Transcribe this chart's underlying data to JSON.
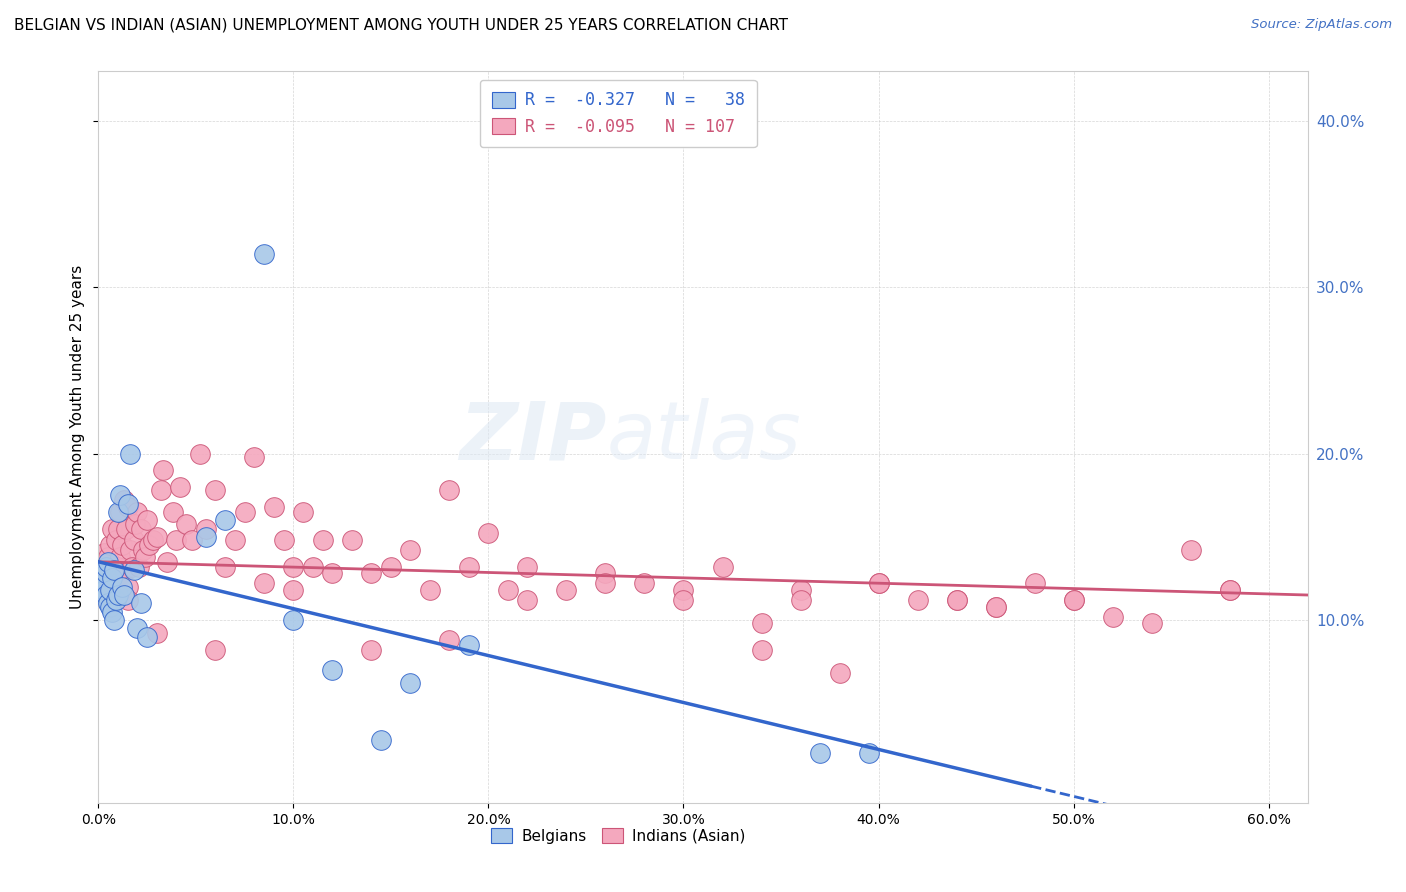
{
  "title": "BELGIAN VS INDIAN (ASIAN) UNEMPLOYMENT AMONG YOUTH UNDER 25 YEARS CORRELATION CHART",
  "source": "Source: ZipAtlas.com",
  "ylabel": "Unemployment Among Youth under 25 years",
  "belgian_color": "#a8c8e8",
  "indian_color": "#f4a8be",
  "belgian_line_color": "#3366cc",
  "indian_line_color": "#cc5577",
  "legend_label_1": "R =  -0.327   N =   38",
  "legend_label_2": "R =  -0.095   N = 107",
  "belgians_label": "Belgians",
  "indians_label": "Indians (Asian)",
  "watermark_1": "ZIP",
  "watermark_2": "atlas",
  "xlim": [
    0.0,
    0.62
  ],
  "ylim": [
    -0.01,
    0.43
  ],
  "right_ytick_vals": [
    0.1,
    0.2,
    0.3,
    0.4
  ],
  "right_ytick_labels": [
    "10.0%",
    "20.0%",
    "30.0%",
    "40.0%"
  ],
  "xtick_vals": [
    0.0,
    0.1,
    0.2,
    0.3,
    0.4,
    0.5,
    0.6
  ],
  "xtick_labels": [
    "0.0%",
    "10.0%",
    "20.0%",
    "30.0%",
    "40.0%",
    "50.0%",
    "60.0%"
  ],
  "belgians_x": [
    0.001,
    0.002,
    0.002,
    0.003,
    0.003,
    0.004,
    0.004,
    0.004,
    0.005,
    0.005,
    0.006,
    0.006,
    0.007,
    0.007,
    0.008,
    0.008,
    0.009,
    0.01,
    0.01,
    0.011,
    0.012,
    0.013,
    0.015,
    0.016,
    0.018,
    0.02,
    0.022,
    0.025,
    0.055,
    0.065,
    0.085,
    0.1,
    0.12,
    0.145,
    0.16,
    0.19,
    0.37,
    0.395
  ],
  "belgians_y": [
    0.13,
    0.12,
    0.125,
    0.118,
    0.122,
    0.115,
    0.128,
    0.132,
    0.11,
    0.135,
    0.108,
    0.118,
    0.105,
    0.125,
    0.1,
    0.13,
    0.112,
    0.115,
    0.165,
    0.175,
    0.12,
    0.115,
    0.17,
    0.2,
    0.13,
    0.095,
    0.11,
    0.09,
    0.15,
    0.16,
    0.32,
    0.1,
    0.07,
    0.028,
    0.062,
    0.085,
    0.02,
    0.02
  ],
  "indians_x": [
    0.001,
    0.002,
    0.002,
    0.003,
    0.003,
    0.004,
    0.004,
    0.005,
    0.005,
    0.006,
    0.006,
    0.007,
    0.007,
    0.008,
    0.008,
    0.009,
    0.009,
    0.01,
    0.01,
    0.011,
    0.011,
    0.012,
    0.012,
    0.013,
    0.014,
    0.015,
    0.015,
    0.016,
    0.017,
    0.018,
    0.019,
    0.02,
    0.021,
    0.022,
    0.023,
    0.024,
    0.025,
    0.026,
    0.028,
    0.03,
    0.032,
    0.033,
    0.035,
    0.038,
    0.04,
    0.042,
    0.045,
    0.048,
    0.052,
    0.055,
    0.06,
    0.065,
    0.07,
    0.075,
    0.08,
    0.085,
    0.09,
    0.095,
    0.1,
    0.105,
    0.11,
    0.115,
    0.12,
    0.13,
    0.14,
    0.15,
    0.16,
    0.17,
    0.18,
    0.19,
    0.2,
    0.21,
    0.22,
    0.24,
    0.26,
    0.28,
    0.3,
    0.32,
    0.34,
    0.36,
    0.38,
    0.4,
    0.42,
    0.44,
    0.46,
    0.48,
    0.5,
    0.52,
    0.54,
    0.56,
    0.58,
    0.44,
    0.4,
    0.36,
    0.34,
    0.3,
    0.26,
    0.22,
    0.18,
    0.14,
    0.1,
    0.06,
    0.03,
    0.015,
    0.58,
    0.5,
    0.46
  ],
  "indians_y": [
    0.128,
    0.132,
    0.12,
    0.14,
    0.125,
    0.118,
    0.13,
    0.122,
    0.138,
    0.115,
    0.145,
    0.128,
    0.155,
    0.13,
    0.12,
    0.148,
    0.125,
    0.132,
    0.155,
    0.138,
    0.165,
    0.128,
    0.145,
    0.172,
    0.155,
    0.12,
    0.168,
    0.142,
    0.132,
    0.148,
    0.158,
    0.165,
    0.132,
    0.155,
    0.142,
    0.138,
    0.16,
    0.145,
    0.148,
    0.15,
    0.178,
    0.19,
    0.135,
    0.165,
    0.148,
    0.18,
    0.158,
    0.148,
    0.2,
    0.155,
    0.178,
    0.132,
    0.148,
    0.165,
    0.198,
    0.122,
    0.168,
    0.148,
    0.132,
    0.165,
    0.132,
    0.148,
    0.128,
    0.148,
    0.128,
    0.132,
    0.142,
    0.118,
    0.178,
    0.132,
    0.152,
    0.118,
    0.132,
    0.118,
    0.128,
    0.122,
    0.118,
    0.132,
    0.098,
    0.118,
    0.068,
    0.122,
    0.112,
    0.112,
    0.108,
    0.122,
    0.112,
    0.102,
    0.098,
    0.142,
    0.118,
    0.112,
    0.122,
    0.112,
    0.082,
    0.112,
    0.122,
    0.112,
    0.088,
    0.082,
    0.118,
    0.082,
    0.092,
    0.112,
    0.118,
    0.112,
    0.108
  ]
}
